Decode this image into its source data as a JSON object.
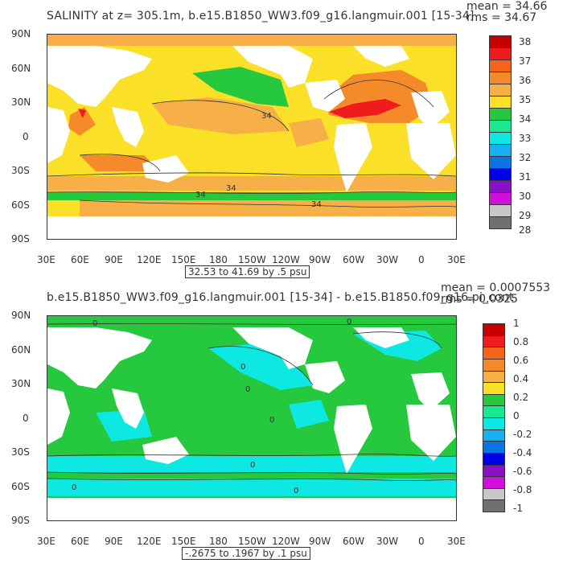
{
  "panels": [
    {
      "title": "SALINITY at z= 305.1m, b.e15.B1850_WW3.f09_g16.langmuir.001 [15-34]",
      "mean_text": "mean = 34.66",
      "rms_text": "rms = 34.67",
      "range_text": "32.53 to 41.69 by .5 psu",
      "y_ticks": [
        "90N",
        "60N",
        "30N",
        "0",
        "30S",
        "60S",
        "90S"
      ],
      "x_ticks": [
        "30E",
        "60E",
        "90E",
        "120E",
        "150E",
        "180",
        "150W",
        "120W",
        "90W",
        "60W",
        "30W",
        "0",
        "30E"
      ],
      "contour_labels": [
        "34",
        "34",
        "34",
        "34"
      ],
      "colorbar": {
        "labels": [
          "38",
          "37",
          "36",
          "35",
          "34",
          "33",
          "32",
          "31",
          "30",
          "29",
          "28"
        ],
        "colors": [
          "#c80000",
          "#ee1c1c",
          "#f5641a",
          "#f58a2a",
          "#f7b048",
          "#fbe028",
          "#26c83e",
          "#18e890",
          "#0ee8e2",
          "#18b0f0",
          "#0a74e6",
          "#0000e6",
          "#8a10c8",
          "#d010d8",
          "#c8c8c8",
          "#707070"
        ]
      },
      "map_colors": {
        "dominant": "#fbe028",
        "warm": "#f7b048",
        "orange": "#f58a2a",
        "red": "#ee1c1c",
        "green": "#26c83e"
      }
    },
    {
      "title": "b.e15.B1850_WW3.f09_g16.langmuir.001 [15-34] - b.e15.B1850.f09_g16.pi_cont",
      "mean_text": "mean = 0.0007553",
      "rms_text": "rms = 0.0325",
      "range_text": "-.2675 to .1967 by .1 psu",
      "y_ticks": [
        "90N",
        "60N",
        "30N",
        "0",
        "30S",
        "60S",
        "90S"
      ],
      "x_ticks": [
        "30E",
        "60E",
        "90E",
        "120E",
        "150E",
        "180",
        "150W",
        "120W",
        "90W",
        "60W",
        "30W",
        "0",
        "30E"
      ],
      "contour_labels": [
        "0",
        "0",
        "0",
        "0",
        "0",
        "0",
        "0",
        "0"
      ],
      "colorbar": {
        "labels": [
          "1",
          "0.8",
          "0.6",
          "0.4",
          "0.2",
          "0",
          "-0.2",
          "-0.4",
          "-0.6",
          "-0.8",
          "-1"
        ],
        "colors": [
          "#c80000",
          "#ee1c1c",
          "#f5641a",
          "#f58a2a",
          "#f7b048",
          "#fbe028",
          "#26c83e",
          "#18e890",
          "#0ee8e2",
          "#18b0f0",
          "#0a74e6",
          "#0000e6",
          "#8a10c8",
          "#d010d8",
          "#c8c8c8",
          "#707070"
        ]
      },
      "map_colors": {
        "positive": "#26c83e",
        "negative": "#0ee8e2"
      }
    }
  ]
}
